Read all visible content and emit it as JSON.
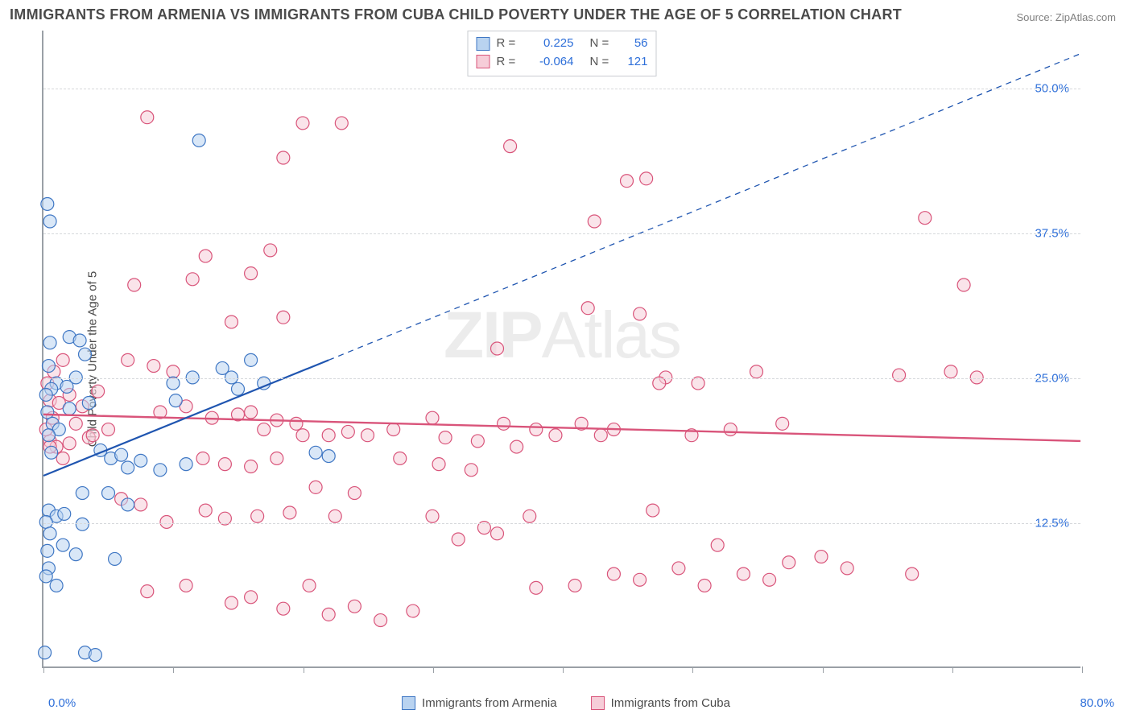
{
  "title": "IMMIGRANTS FROM ARMENIA VS IMMIGRANTS FROM CUBA CHILD POVERTY UNDER THE AGE OF 5 CORRELATION CHART",
  "source": "Source: ZipAtlas.com",
  "ylabel": "Child Poverty Under the Age of 5",
  "watermark_bold": "ZIP",
  "watermark_thin": "Atlas",
  "chart": {
    "type": "scatter",
    "xlim": [
      0,
      80
    ],
    "ylim": [
      0,
      55
    ],
    "xtick_labels": {
      "start": "0.0%",
      "end": "80.0%"
    },
    "xtick_positions": [
      0,
      10,
      20,
      30,
      40,
      50,
      60,
      70,
      80
    ],
    "ytick_labels": [
      "12.5%",
      "25.0%",
      "37.5%",
      "50.0%"
    ],
    "ytick_positions": [
      12.5,
      25.0,
      37.5,
      50.0
    ],
    "grid_color": "#d6d8db",
    "axis_color": "#9aa0a6",
    "background_color": "#ffffff",
    "marker_radius": 8,
    "marker_opacity": 0.55,
    "series": [
      {
        "id": "armenia",
        "legend_label": "Immigrants from Armenia",
        "color_fill": "#b9d3f0",
        "color_stroke": "#3f77c4",
        "r_value": "0.225",
        "n_value": "56",
        "trend": {
          "x1": 0,
          "y1": 16.5,
          "x2": 22,
          "y2": 26.5,
          "dash_x2": 80,
          "dash_y2": 53.0,
          "stroke": "#1f55b0",
          "width": 2.2
        },
        "points": [
          [
            0.3,
            40.0
          ],
          [
            0.5,
            38.5
          ],
          [
            2.0,
            28.5
          ],
          [
            0.5,
            28.0
          ],
          [
            2.8,
            28.2
          ],
          [
            3.2,
            27.0
          ],
          [
            0.4,
            26.0
          ],
          [
            2.5,
            25.0
          ],
          [
            1.0,
            24.5
          ],
          [
            0.6,
            24.0
          ],
          [
            1.8,
            24.2
          ],
          [
            0.2,
            23.5
          ],
          [
            3.5,
            22.8
          ],
          [
            0.3,
            22.0
          ],
          [
            2.0,
            22.3
          ],
          [
            0.7,
            21.0
          ],
          [
            1.2,
            20.5
          ],
          [
            0.4,
            20.0
          ],
          [
            0.6,
            18.5
          ],
          [
            4.4,
            18.7
          ],
          [
            5.2,
            18.0
          ],
          [
            6.0,
            18.3
          ],
          [
            7.5,
            17.8
          ],
          [
            9.0,
            17.0
          ],
          [
            10.0,
            24.5
          ],
          [
            10.2,
            23.0
          ],
          [
            11.0,
            17.5
          ],
          [
            11.5,
            25.0
          ],
          [
            12.0,
            45.5
          ],
          [
            13.8,
            25.8
          ],
          [
            14.5,
            25.0
          ],
          [
            15.0,
            24.0
          ],
          [
            16.0,
            26.5
          ],
          [
            17.0,
            24.5
          ],
          [
            21.0,
            18.5
          ],
          [
            22.0,
            18.2
          ],
          [
            3.0,
            15.0
          ],
          [
            5.0,
            15.0
          ],
          [
            6.5,
            14.0
          ],
          [
            0.4,
            13.5
          ],
          [
            1.0,
            13.0
          ],
          [
            1.6,
            13.2
          ],
          [
            0.2,
            12.5
          ],
          [
            3.0,
            12.3
          ],
          [
            0.5,
            11.5
          ],
          [
            1.5,
            10.5
          ],
          [
            0.3,
            10.0
          ],
          [
            2.5,
            9.7
          ],
          [
            5.5,
            9.3
          ],
          [
            0.4,
            8.5
          ],
          [
            0.2,
            7.8
          ],
          [
            1.0,
            7.0
          ],
          [
            0.1,
            1.2
          ],
          [
            3.2,
            1.2
          ],
          [
            4.0,
            1.0
          ],
          [
            6.5,
            17.2
          ]
        ]
      },
      {
        "id": "cuba",
        "legend_label": "Immigrants from Cuba",
        "color_fill": "#f6cdd8",
        "color_stroke": "#d9547a",
        "r_value": "-0.064",
        "n_value": "121",
        "trend": {
          "x1": 0,
          "y1": 21.8,
          "x2": 80,
          "y2": 19.5,
          "stroke": "#d9547a",
          "width": 2.4
        },
        "points": [
          [
            8.0,
            47.5
          ],
          [
            20.0,
            47.0
          ],
          [
            23.0,
            47.0
          ],
          [
            18.5,
            44.0
          ],
          [
            36.0,
            45.0
          ],
          [
            45.0,
            42.0
          ],
          [
            46.5,
            42.2
          ],
          [
            68.0,
            38.8
          ],
          [
            42.5,
            38.5
          ],
          [
            17.5,
            36.0
          ],
          [
            12.5,
            35.5
          ],
          [
            7.0,
            33.0
          ],
          [
            11.5,
            33.5
          ],
          [
            16.0,
            34.0
          ],
          [
            71.0,
            33.0
          ],
          [
            42.0,
            31.0
          ],
          [
            46.0,
            30.5
          ],
          [
            18.5,
            30.2
          ],
          [
            14.5,
            29.8
          ],
          [
            35.0,
            27.5
          ],
          [
            55.0,
            25.5
          ],
          [
            70.0,
            25.5
          ],
          [
            72.0,
            25.0
          ],
          [
            66.0,
            25.2
          ],
          [
            48.0,
            25.0
          ],
          [
            47.5,
            24.5
          ],
          [
            2.0,
            23.5
          ],
          [
            0.5,
            23.0
          ],
          [
            1.2,
            22.8
          ],
          [
            3.0,
            22.5
          ],
          [
            6.5,
            26.5
          ],
          [
            8.5,
            26.0
          ],
          [
            10.0,
            25.5
          ],
          [
            4.2,
            23.8
          ],
          [
            9.0,
            22.0
          ],
          [
            11.0,
            22.5
          ],
          [
            13.0,
            21.5
          ],
          [
            15.0,
            21.8
          ],
          [
            16.0,
            22.0
          ],
          [
            18.0,
            21.3
          ],
          [
            17.0,
            20.5
          ],
          [
            19.5,
            21.0
          ],
          [
            20.0,
            20.0
          ],
          [
            22.0,
            20.0
          ],
          [
            23.5,
            20.3
          ],
          [
            25.0,
            20.0
          ],
          [
            27.0,
            20.5
          ],
          [
            30.0,
            21.5
          ],
          [
            31.0,
            19.8
          ],
          [
            33.5,
            19.5
          ],
          [
            35.5,
            21.0
          ],
          [
            38.0,
            20.5
          ],
          [
            39.5,
            20.0
          ],
          [
            41.5,
            21.0
          ],
          [
            43.0,
            20.0
          ],
          [
            44.0,
            20.5
          ],
          [
            36.5,
            19.0
          ],
          [
            12.3,
            18.0
          ],
          [
            14.0,
            17.5
          ],
          [
            16.0,
            17.3
          ],
          [
            18.0,
            18.0
          ],
          [
            27.5,
            18.0
          ],
          [
            30.5,
            17.5
          ],
          [
            33.0,
            17.0
          ],
          [
            50.0,
            20.0
          ],
          [
            53.0,
            20.5
          ],
          [
            57.0,
            21.0
          ],
          [
            21.0,
            15.5
          ],
          [
            24.0,
            15.0
          ],
          [
            12.5,
            13.5
          ],
          [
            14.0,
            12.8
          ],
          [
            16.5,
            13.0
          ],
          [
            19.0,
            13.3
          ],
          [
            22.5,
            13.0
          ],
          [
            30.0,
            13.0
          ],
          [
            32.0,
            11.0
          ],
          [
            34.0,
            12.0
          ],
          [
            35.0,
            11.5
          ],
          [
            37.5,
            13.0
          ],
          [
            38.0,
            6.8
          ],
          [
            41.0,
            7.0
          ],
          [
            44.0,
            8.0
          ],
          [
            46.0,
            7.5
          ],
          [
            49.0,
            8.5
          ],
          [
            51.0,
            7.0
          ],
          [
            52.0,
            10.5
          ],
          [
            54.0,
            8.0
          ],
          [
            56.0,
            7.5
          ],
          [
            57.5,
            9.0
          ],
          [
            60.0,
            9.5
          ],
          [
            62.0,
            8.5
          ],
          [
            67.0,
            8.0
          ],
          [
            8.0,
            6.5
          ],
          [
            11.0,
            7.0
          ],
          [
            14.5,
            5.5
          ],
          [
            16.0,
            6.0
          ],
          [
            18.5,
            5.0
          ],
          [
            22.0,
            4.5
          ],
          [
            24.0,
            5.2
          ],
          [
            26.0,
            4.0
          ],
          [
            28.5,
            4.8
          ],
          [
            20.5,
            7.0
          ],
          [
            0.5,
            19.5
          ],
          [
            1.0,
            19.0
          ],
          [
            2.0,
            19.3
          ],
          [
            1.5,
            18.0
          ],
          [
            3.5,
            19.8
          ],
          [
            0.7,
            21.5
          ],
          [
            0.2,
            20.5
          ],
          [
            50.5,
            24.5
          ],
          [
            47.0,
            13.5
          ],
          [
            6.0,
            14.5
          ],
          [
            7.5,
            14.0
          ],
          [
            9.5,
            12.5
          ],
          [
            0.5,
            19.0
          ],
          [
            2.5,
            21.0
          ],
          [
            3.8,
            20.0
          ],
          [
            1.5,
            26.5
          ],
          [
            0.3,
            24.5
          ],
          [
            0.8,
            25.5
          ],
          [
            5.0,
            20.5
          ]
        ]
      }
    ]
  },
  "stats_labels": {
    "r": "R =",
    "n": "N ="
  }
}
